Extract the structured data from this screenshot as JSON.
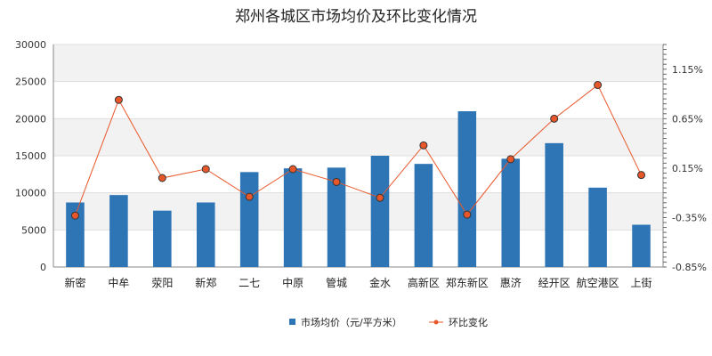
{
  "chart_data": {
    "type": "bar",
    "title": "郑州各城区市场均价及环比变化情况",
    "categories": [
      "新密",
      "中牟",
      "荥阳",
      "新郑",
      "二七",
      "中原",
      "管城",
      "金水",
      "高新区",
      "郑东新区",
      "惠济",
      "经开区",
      "航空港区",
      "上街"
    ],
    "series": [
      {
        "name": "市场均价（元/平方米）",
        "type": "bar",
        "axis": "left",
        "color": "#2e75b6",
        "values": [
          8700,
          9700,
          7600,
          8700,
          12800,
          13300,
          13400,
          15000,
          13900,
          21000,
          14600,
          16700,
          10700,
          5700
        ]
      },
      {
        "name": "环比变化",
        "type": "line",
        "axis": "right",
        "color": "#e8572a",
        "values": [
          -0.33,
          0.84,
          0.05,
          0.14,
          -0.14,
          0.14,
          0.01,
          -0.15,
          0.38,
          -0.32,
          0.24,
          0.65,
          0.99,
          0.08
        ]
      }
    ],
    "y_left": {
      "ylim": [
        0,
        30000
      ],
      "ticks": [
        "0",
        "5000",
        "10000",
        "15000",
        "20000",
        "25000",
        "30000"
      ]
    },
    "y_right": {
      "ylim": [
        -0.85,
        1.4
      ],
      "ticks": [
        "-0.85%",
        "-0.35%",
        "0.15%",
        "0.65%",
        "1.15%"
      ]
    },
    "legend": {
      "position": "bottom"
    },
    "grid": true
  }
}
